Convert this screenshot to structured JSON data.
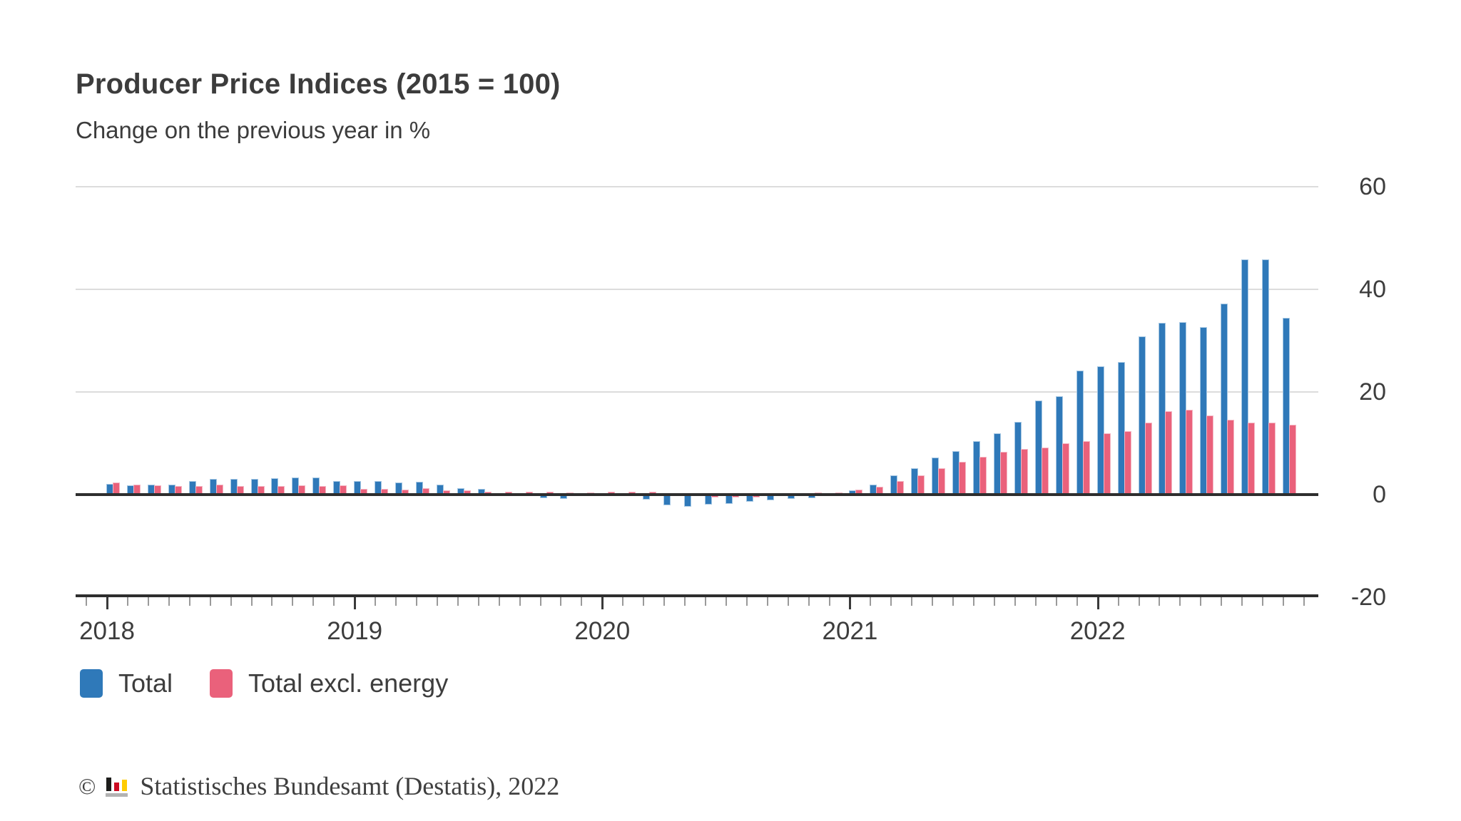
{
  "header": {
    "title": "Producer Price Indices (2015 = 100)",
    "subtitle": "Change on the previous year in %"
  },
  "chart_data": {
    "type": "bar",
    "x": [
      "2018-01",
      "2018-02",
      "2018-03",
      "2018-04",
      "2018-05",
      "2018-06",
      "2018-07",
      "2018-08",
      "2018-09",
      "2018-10",
      "2018-11",
      "2018-12",
      "2019-01",
      "2019-02",
      "2019-03",
      "2019-04",
      "2019-05",
      "2019-06",
      "2019-07",
      "2019-08",
      "2019-09",
      "2019-10",
      "2019-11",
      "2019-12",
      "2020-01",
      "2020-02",
      "2020-03",
      "2020-04",
      "2020-05",
      "2020-06",
      "2020-07",
      "2020-08",
      "2020-09",
      "2020-10",
      "2020-11",
      "2020-12",
      "2021-01",
      "2021-02",
      "2021-03",
      "2021-04",
      "2021-05",
      "2021-06",
      "2021-07",
      "2021-08",
      "2021-09",
      "2021-10",
      "2021-11",
      "2021-12",
      "2022-01",
      "2022-02",
      "2022-03",
      "2022-04",
      "2022-05",
      "2022-06",
      "2022-07",
      "2022-08",
      "2022-09",
      "2022-10"
    ],
    "series": [
      {
        "name": "Total",
        "color": "#2f79b9",
        "values": [
          2.1,
          1.8,
          1.9,
          2.0,
          2.7,
          3.0,
          3.0,
          3.1,
          3.2,
          3.3,
          3.3,
          2.7,
          2.6,
          2.6,
          2.4,
          2.5,
          1.9,
          1.2,
          1.1,
          0.3,
          -0.1,
          -0.6,
          -0.7,
          -0.2,
          0.2,
          -0.1,
          -0.8,
          -1.9,
          -2.2,
          -1.8,
          -1.7,
          -1.2,
          -1.0,
          -0.7,
          -0.5,
          0.2,
          0.9,
          1.9,
          3.7,
          5.2,
          7.2,
          8.5,
          10.4,
          12.0,
          14.2,
          18.4,
          19.2,
          24.2,
          25.0,
          25.9,
          30.9,
          33.5,
          33.6,
          32.7,
          37.2,
          45.8,
          45.8,
          34.5
        ]
      },
      {
        "name": "Total excl. energy",
        "color": "#ea617b",
        "values": [
          2.3,
          2.0,
          1.8,
          1.6,
          1.7,
          1.9,
          1.7,
          1.6,
          1.6,
          1.8,
          1.7,
          1.8,
          1.1,
          1.1,
          1.0,
          1.2,
          0.8,
          0.9,
          0.6,
          0.5,
          0.5,
          0.5,
          0.4,
          0.4,
          0.5,
          0.5,
          0.6,
          0.0,
          -0.2,
          -0.4,
          -0.4,
          -0.4,
          -0.1,
          0.3,
          0.4,
          0.4,
          1.0,
          1.5,
          2.6,
          3.7,
          5.2,
          6.4,
          7.4,
          8.3,
          8.9,
          9.2,
          10.0,
          10.4,
          12.0,
          12.4,
          14.0,
          16.3,
          16.5,
          15.4,
          14.6,
          14.0,
          14.0,
          13.6
        ]
      }
    ],
    "title": "Producer Price Indices (2015 = 100)",
    "subtitle": "Change on the previous year in %",
    "xlabel": "",
    "ylabel": "",
    "ylim": [
      -20,
      60
    ],
    "yticks": [
      60,
      40,
      20,
      0,
      -20
    ],
    "year_ticks": [
      {
        "label": "2018",
        "month_index": 0
      },
      {
        "label": "2019",
        "month_index": 12
      },
      {
        "label": "2020",
        "month_index": 24
      },
      {
        "label": "2021",
        "month_index": 36
      },
      {
        "label": "2022",
        "month_index": 48
      }
    ],
    "grid": true,
    "legend_position": "bottom"
  },
  "legend": {
    "items": [
      {
        "label": "Total",
        "color": "#2f79b9"
      },
      {
        "label": "Total excl. energy",
        "color": "#ea617b"
      }
    ]
  },
  "footer": {
    "copyright_symbol": "©",
    "source": "Statistisches Bundesamt (Destatis), 2022",
    "logo_colors": {
      "black": "#1d1d1b",
      "red": "#cc0a22",
      "gold": "#ffcc00",
      "base_gray": "#b2b2b2"
    }
  }
}
